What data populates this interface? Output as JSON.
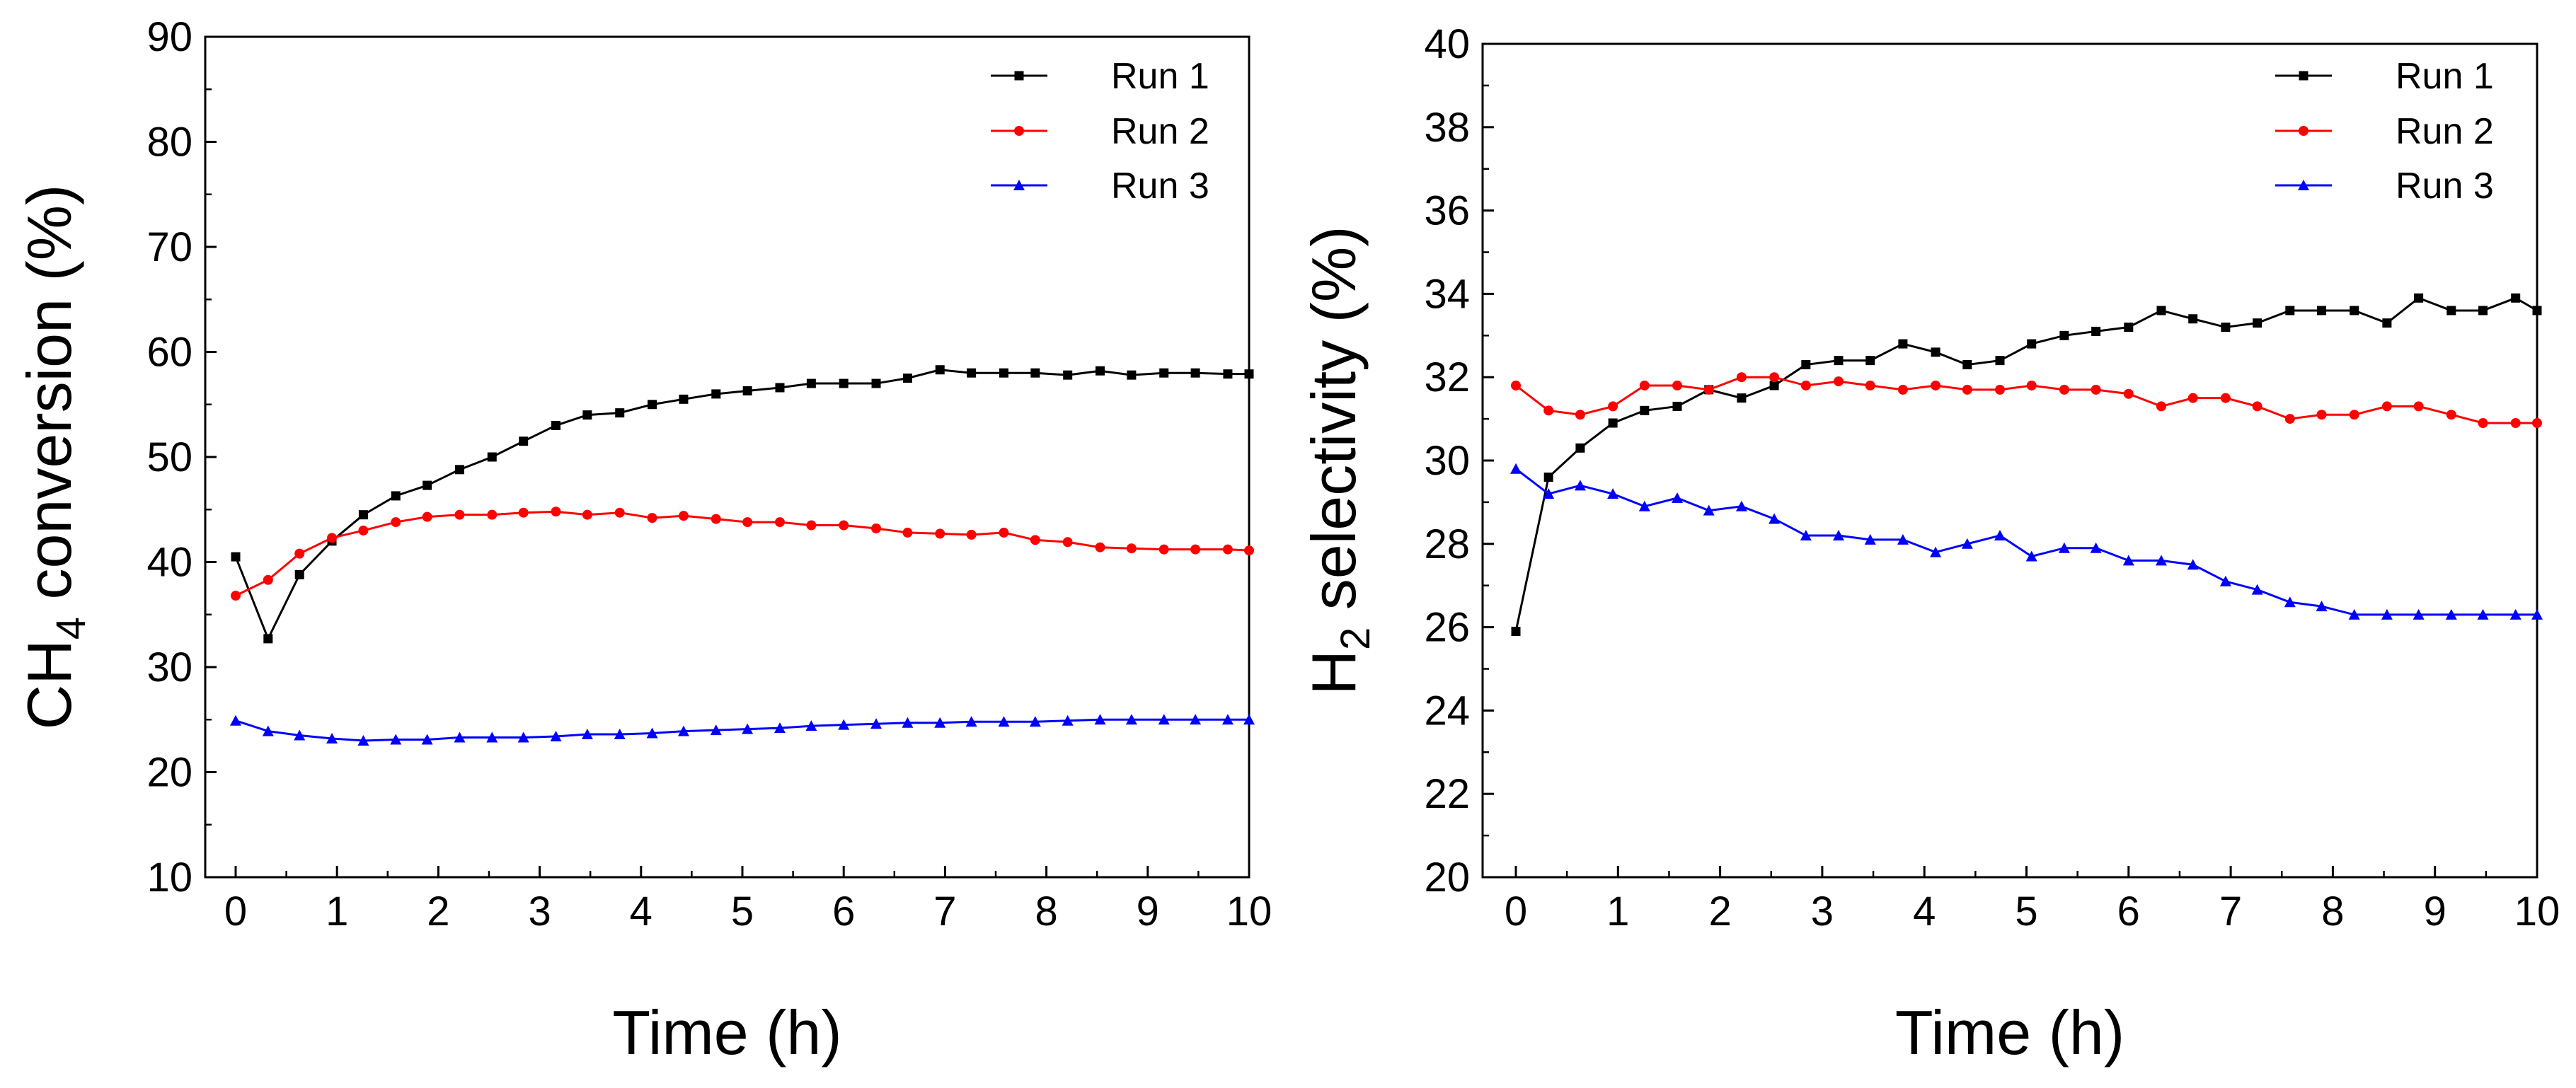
{
  "colors": {
    "Run 1": "#000000",
    "Run 2": "#ff0000",
    "Run 3": "#0000ff"
  },
  "chart_data": [
    {
      "type": "line",
      "xlabel": "Time (h)",
      "ylabel": {
        "main": "CH",
        "sub": "4",
        "rest": " conversion (%)"
      },
      "xlim": [
        0,
        10
      ],
      "ylim": [
        10,
        90
      ],
      "xticks": [
        0,
        1,
        2,
        3,
        4,
        5,
        6,
        7,
        8,
        9,
        10
      ],
      "yticks": [
        10,
        20,
        30,
        40,
        50,
        60,
        70,
        80,
        90
      ],
      "legend": "top-right",
      "grid": false,
      "x": [
        0,
        0.32,
        0.63,
        0.95,
        1.26,
        1.58,
        1.89,
        2.21,
        2.53,
        2.84,
        3.16,
        3.47,
        3.79,
        4.11,
        4.42,
        4.74,
        5.05,
        5.37,
        5.68,
        6.0,
        6.32,
        6.63,
        6.95,
        7.26,
        7.58,
        7.89,
        8.21,
        8.53,
        8.84,
        9.16,
        9.47,
        9.79,
        10.0
      ],
      "series": [
        {
          "name": "Run 1",
          "marker": "square",
          "values": [
            40.5,
            32.7,
            38.8,
            42.0,
            44.5,
            46.3,
            47.3,
            48.8,
            50.0,
            51.5,
            53.0,
            54.0,
            54.2,
            55.0,
            55.5,
            56.0,
            56.3,
            56.6,
            57.0,
            57.0,
            57.0,
            57.5,
            58.3,
            58.0,
            58.0,
            58.0,
            57.8,
            58.2,
            57.8,
            58.0,
            58.0,
            57.9,
            57.9
          ]
        },
        {
          "name": "Run 2",
          "marker": "circle",
          "values": [
            36.8,
            38.3,
            40.8,
            42.3,
            43.0,
            43.8,
            44.3,
            44.5,
            44.5,
            44.7,
            44.8,
            44.5,
            44.7,
            44.2,
            44.4,
            44.1,
            43.8,
            43.8,
            43.5,
            43.5,
            43.2,
            42.8,
            42.7,
            42.6,
            42.8,
            42.1,
            41.9,
            41.4,
            41.3,
            41.2,
            41.2,
            41.2,
            41.1
          ]
        },
        {
          "name": "Run 3",
          "marker": "triangle",
          "values": [
            24.9,
            23.9,
            23.5,
            23.2,
            23.0,
            23.1,
            23.1,
            23.3,
            23.3,
            23.3,
            23.4,
            23.6,
            23.6,
            23.7,
            23.9,
            24.0,
            24.1,
            24.2,
            24.4,
            24.5,
            24.6,
            24.7,
            24.7,
            24.8,
            24.8,
            24.8,
            24.9,
            25.0,
            25.0,
            25.0,
            25.0,
            25.0,
            25.0
          ]
        }
      ]
    },
    {
      "type": "line",
      "xlabel": "Time (h)",
      "ylabel": {
        "main": "H",
        "sub": "2",
        "rest": " selectivity (%)"
      },
      "xlim": [
        0,
        10
      ],
      "ylim": [
        20,
        40
      ],
      "xticks": [
        0,
        1,
        2,
        3,
        4,
        5,
        6,
        7,
        8,
        9,
        10
      ],
      "yticks": [
        20,
        22,
        24,
        26,
        28,
        30,
        32,
        34,
        36,
        38,
        40
      ],
      "legend": "top-right",
      "grid": false,
      "x": [
        0,
        0.32,
        0.63,
        0.95,
        1.26,
        1.58,
        1.89,
        2.21,
        2.53,
        2.84,
        3.16,
        3.47,
        3.79,
        4.11,
        4.42,
        4.74,
        5.05,
        5.37,
        5.68,
        6.0,
        6.32,
        6.63,
        6.95,
        7.26,
        7.58,
        7.89,
        8.21,
        8.53,
        8.84,
        9.16,
        9.47,
        9.79,
        10.0
      ],
      "series": [
        {
          "name": "Run 1",
          "marker": "square",
          "values": [
            25.9,
            29.6,
            30.3,
            30.9,
            31.2,
            31.3,
            31.7,
            31.5,
            31.8,
            32.3,
            32.4,
            32.4,
            32.8,
            32.6,
            32.3,
            32.4,
            32.8,
            33.0,
            33.1,
            33.2,
            33.6,
            33.4,
            33.2,
            33.3,
            33.6,
            33.6,
            33.6,
            33.3,
            33.9,
            33.6,
            33.6,
            33.9,
            33.6
          ]
        },
        {
          "name": "Run 2",
          "marker": "circle",
          "values": [
            31.8,
            31.2,
            31.1,
            31.3,
            31.8,
            31.8,
            31.7,
            32.0,
            32.0,
            31.8,
            31.9,
            31.8,
            31.7,
            31.8,
            31.7,
            31.7,
            31.8,
            31.7,
            31.7,
            31.6,
            31.3,
            31.5,
            31.5,
            31.3,
            31.0,
            31.1,
            31.1,
            31.3,
            31.3,
            31.1,
            30.9,
            30.9,
            30.9
          ]
        },
        {
          "name": "Run 3",
          "marker": "triangle",
          "values": [
            29.8,
            29.2,
            29.4,
            29.2,
            28.9,
            29.1,
            28.8,
            28.9,
            28.6,
            28.2,
            28.2,
            28.1,
            28.1,
            27.8,
            28.0,
            28.2,
            27.7,
            27.9,
            27.9,
            27.6,
            27.6,
            27.5,
            27.1,
            26.9,
            26.6,
            26.5,
            26.3,
            26.3,
            26.3,
            26.3,
            26.3,
            26.3,
            26.3
          ]
        }
      ]
    }
  ]
}
